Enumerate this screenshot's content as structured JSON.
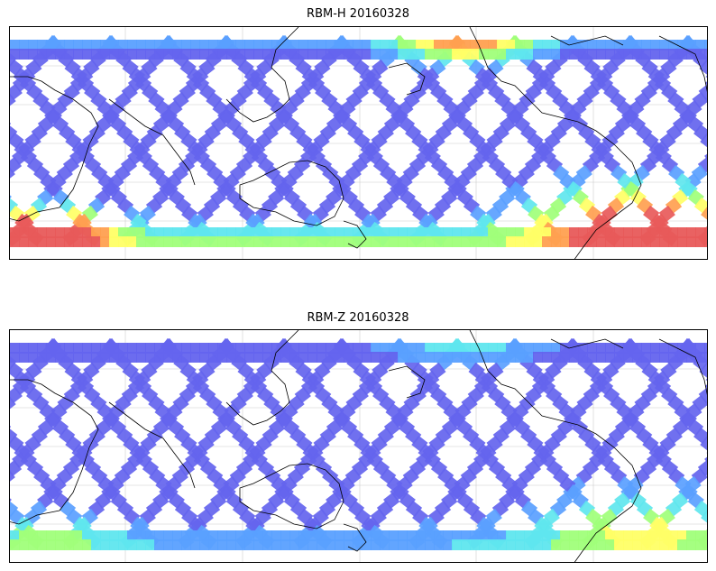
{
  "panels": [
    {
      "title": "RBM-H 20160328",
      "variable": "RBM-H",
      "date": "20160328",
      "field_profile": "high"
    },
    {
      "title": "RBM-Z 20160328",
      "variable": "RBM-Z",
      "date": "20160328",
      "field_profile": "low"
    }
  ],
  "map": {
    "projection": "cylindrical",
    "grid_lines": true,
    "coastlines": true,
    "track_color_low": "#6464ee",
    "colormap": [
      "#6464ee",
      "#5aa0ff",
      "#5fe6ee",
      "#a0ff7a",
      "#ffff66",
      "#ffa050",
      "#e85a5a"
    ]
  }
}
